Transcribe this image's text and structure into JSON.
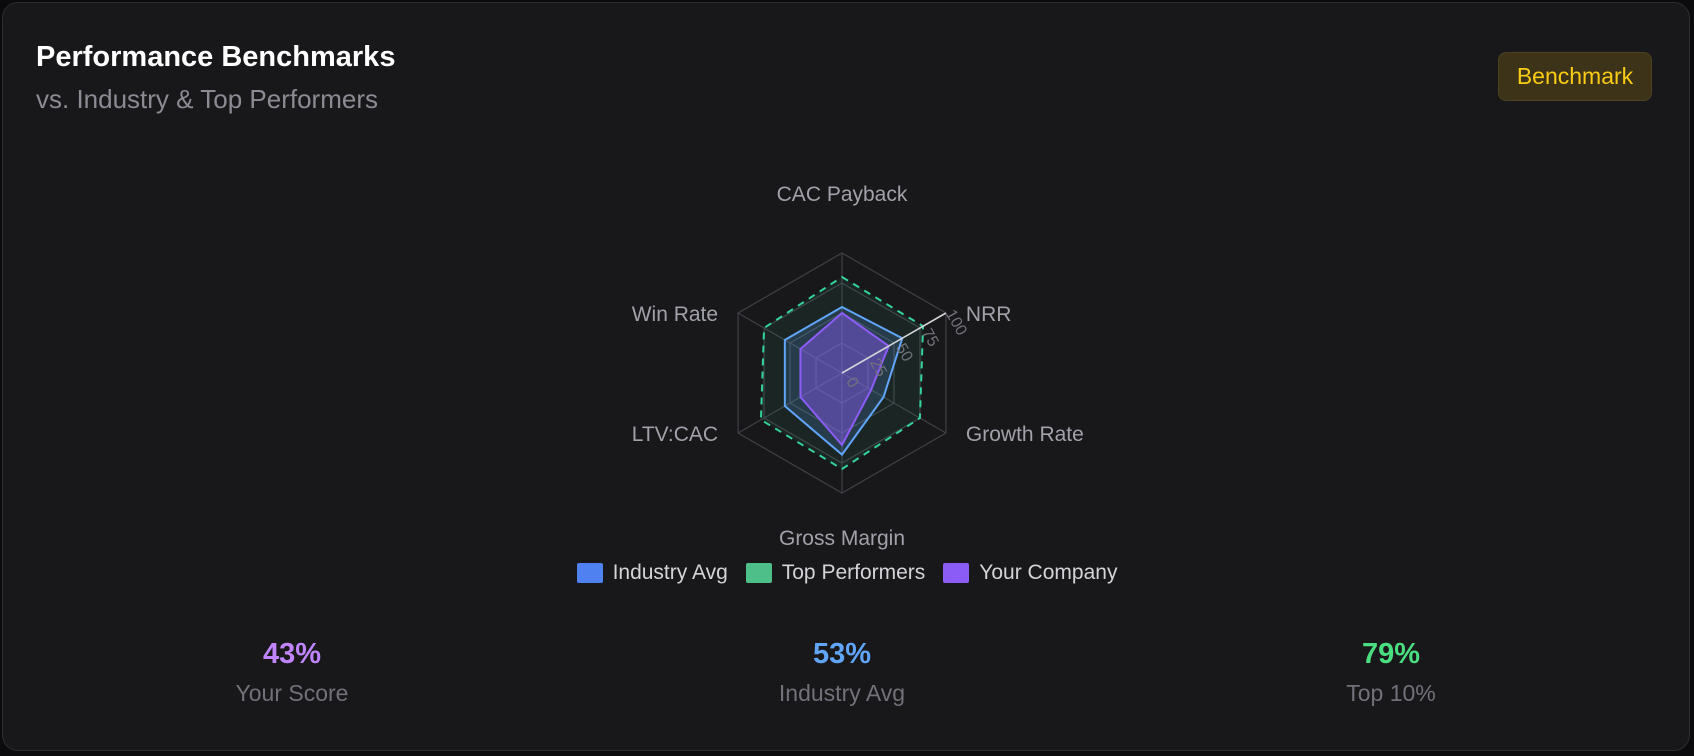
{
  "header": {
    "title": "Performance Benchmarks",
    "subtitle": "vs. Industry & Top Performers",
    "badge": "Benchmark"
  },
  "chart_data": {
    "type": "radar",
    "axes": [
      "CAC Payback",
      "NRR",
      "Growth Rate",
      "Gross Margin",
      "LTV:CAC",
      "Win Rate"
    ],
    "r_ticks": [
      "0",
      "25",
      "50",
      "75",
      "100"
    ],
    "r_range": [
      0,
      100
    ],
    "series": [
      {
        "name": "Top Performers",
        "values": [
          80,
          78,
          75,
          80,
          78,
          75
        ],
        "color": "#34d399",
        "style": "dashed"
      },
      {
        "name": "Industry Avg",
        "values": [
          55,
          58,
          40,
          68,
          55,
          55
        ],
        "color": "#60a5fa",
        "style": "solid"
      },
      {
        "name": "Your Company",
        "values": [
          50,
          45,
          28,
          60,
          40,
          40
        ],
        "color": "#8b5cf6",
        "style": "solid"
      }
    ],
    "legend": [
      {
        "name": "Industry Avg",
        "color": "#4f81f0"
      },
      {
        "name": "Top Performers",
        "color": "#4fbf8a"
      },
      {
        "name": "Your Company",
        "color": "#8b5cf6"
      }
    ],
    "legend_position": "bottom",
    "grid": true
  },
  "stats": [
    {
      "value": "43%",
      "label": "Your Score",
      "color": "#c084fc"
    },
    {
      "value": "53%",
      "label": "Industry Avg",
      "color": "#60a5fa"
    },
    {
      "value": "79%",
      "label": "Top 10%",
      "color": "#4ade80"
    }
  ]
}
